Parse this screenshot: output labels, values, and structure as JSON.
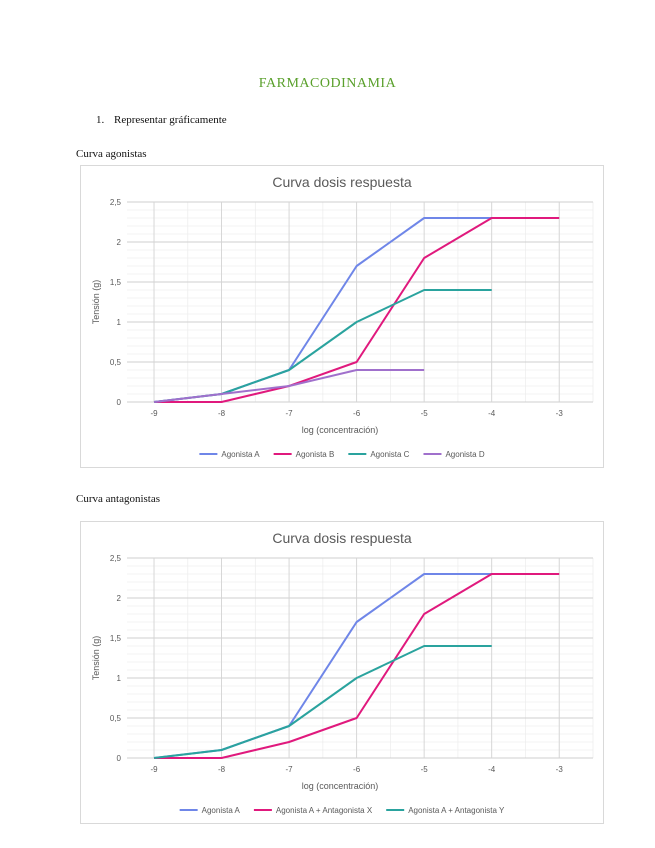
{
  "document": {
    "title": "FARMACODINAMIA",
    "list_number": "1.",
    "list_text": "Representar gráficamente",
    "section1": "Curva agonistas",
    "section2": "Curva antagonistas"
  },
  "chart_data": [
    {
      "type": "line",
      "title": "Curva dosis respuesta",
      "xlabel": "log (concentración)",
      "ylabel": "Tensión (g)",
      "x_ticks": [
        "-9",
        "-8",
        "-7",
        "-6",
        "-5",
        "-4",
        "-3"
      ],
      "y_ticks": [
        "0",
        "0,5",
        "1",
        "1,5",
        "2",
        "2,5"
      ],
      "xlim": [
        -9.4,
        -2.5
      ],
      "ylim": [
        0,
        2.5
      ],
      "grid": true,
      "legend": "bottom",
      "series": [
        {
          "name": "Agonista A",
          "color": "#6f86e8",
          "x": [
            -9,
            -8,
            -7,
            -6,
            -5,
            -4
          ],
          "y": [
            0,
            0.1,
            0.4,
            1.7,
            2.3,
            2.3
          ]
        },
        {
          "name": "Agonista B",
          "color": "#e0197d",
          "x": [
            -9,
            -8,
            -7,
            -6,
            -5,
            -4,
            -3
          ],
          "y": [
            0,
            0,
            0.2,
            0.5,
            1.8,
            2.3,
            2.3
          ]
        },
        {
          "name": "Agonista C",
          "color": "#2aa39e",
          "x": [
            -9,
            -8,
            -7,
            -6,
            -5,
            -4
          ],
          "y": [
            0,
            0.1,
            0.4,
            1.0,
            1.4,
            1.4
          ]
        },
        {
          "name": "Agonista D",
          "color": "#a070cc",
          "x": [
            -9,
            -8,
            -7,
            -6,
            -5
          ],
          "y": [
            0,
            0.1,
            0.2,
            0.4,
            0.4
          ]
        }
      ]
    },
    {
      "type": "line",
      "title": "Curva dosis respuesta",
      "xlabel": "log (concentración)",
      "ylabel": "Tensión (g)",
      "x_ticks": [
        "-9",
        "-8",
        "-7",
        "-6",
        "-5",
        "-4",
        "-3"
      ],
      "y_ticks": [
        "0",
        "0,5",
        "1",
        "1,5",
        "2",
        "2,5"
      ],
      "xlim": [
        -9.4,
        -2.5
      ],
      "ylim": [
        0,
        2.5
      ],
      "grid": true,
      "legend": "bottom",
      "series": [
        {
          "name": "Agonista A",
          "color": "#6f86e8",
          "x": [
            -9,
            -8,
            -7,
            -6,
            -5,
            -4
          ],
          "y": [
            0,
            0.1,
            0.4,
            1.7,
            2.3,
            2.3
          ]
        },
        {
          "name": "Agonista A + Antagonista X",
          "color": "#e0197d",
          "x": [
            -9,
            -8,
            -7,
            -6,
            -5,
            -4,
            -3
          ],
          "y": [
            0,
            0,
            0.2,
            0.5,
            1.8,
            2.3,
            2.3
          ]
        },
        {
          "name": "Agonista A + Antagonista Y",
          "color": "#2aa39e",
          "x": [
            -9,
            -8,
            -7,
            -6,
            -5,
            -4
          ],
          "y": [
            0,
            0.1,
            0.4,
            1.0,
            1.4,
            1.4
          ]
        }
      ]
    }
  ]
}
